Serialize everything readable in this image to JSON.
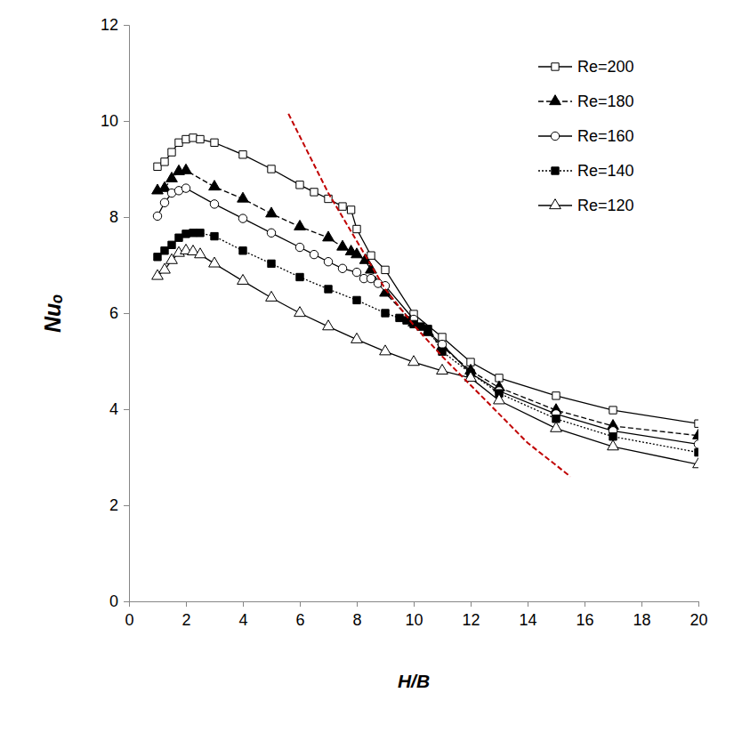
{
  "chart_data": {
    "type": "line",
    "x_label": "H/B",
    "y_label": "Nuₒ",
    "xlim": [
      0,
      20
    ],
    "xticks": [
      0,
      2,
      4,
      6,
      8,
      10,
      12,
      14,
      16,
      18,
      20
    ],
    "ylim": [
      0,
      12
    ],
    "yticks": [
      0,
      2,
      4,
      6,
      8,
      10,
      12
    ],
    "grid": false,
    "legend": "upper right",
    "series": [
      {
        "name": "Re=200",
        "color": "#000000",
        "marker": "square-open",
        "line_style": "solid",
        "x": [
          1,
          1.25,
          1.5,
          1.75,
          2,
          2.25,
          2.5,
          3,
          4,
          5,
          6,
          6.5,
          7,
          7.5,
          7.8,
          8,
          8.5,
          9,
          10,
          11,
          12,
          13,
          15,
          17,
          20
        ],
        "values": [
          9.05,
          9.15,
          9.35,
          9.55,
          9.62,
          9.65,
          9.62,
          9.55,
          9.3,
          9.0,
          8.67,
          8.52,
          8.38,
          8.22,
          8.15,
          7.75,
          7.2,
          6.9,
          5.98,
          5.5,
          4.98,
          4.65,
          4.28,
          3.98,
          3.7
        ]
      },
      {
        "name": "Re=180",
        "color": "#000000",
        "marker": "triangle-filled",
        "line_style": "dashed",
        "x": [
          1,
          1.25,
          1.5,
          1.75,
          2,
          3,
          4,
          5,
          6,
          7,
          7.5,
          7.8,
          8,
          8.3,
          8.5,
          9,
          10,
          10.5,
          11,
          12,
          13,
          15,
          17,
          20
        ],
        "values": [
          8.55,
          8.6,
          8.8,
          8.95,
          8.97,
          8.63,
          8.38,
          8.07,
          7.8,
          7.57,
          7.38,
          7.28,
          7.22,
          7.1,
          6.9,
          6.42,
          5.8,
          5.6,
          5.3,
          4.8,
          4.45,
          3.98,
          3.65,
          3.45
        ]
      },
      {
        "name": "Re=160",
        "color": "#000000",
        "marker": "circle-open",
        "line_style": "solid",
        "x": [
          1,
          1.25,
          1.5,
          1.75,
          2,
          3,
          4,
          5,
          6,
          6.5,
          7,
          7.5,
          8,
          8.25,
          8.5,
          8.75,
          9,
          10,
          11,
          12,
          13,
          15,
          17,
          20
        ],
        "values": [
          8.02,
          8.3,
          8.5,
          8.55,
          8.6,
          8.27,
          7.97,
          7.67,
          7.37,
          7.22,
          7.07,
          6.93,
          6.85,
          6.72,
          6.72,
          6.62,
          6.57,
          5.87,
          5.35,
          4.75,
          4.38,
          3.9,
          3.55,
          3.27
        ]
      },
      {
        "name": "Re=140",
        "color": "#000000",
        "marker": "square-filled",
        "line_style": "dotted",
        "x": [
          1,
          1.25,
          1.5,
          1.75,
          2,
          2.25,
          2.5,
          3,
          4,
          5,
          6,
          7,
          8,
          9,
          9.5,
          9.75,
          10,
          10.25,
          10.5,
          11,
          12,
          13,
          15,
          17,
          20
        ],
        "values": [
          7.17,
          7.3,
          7.42,
          7.57,
          7.65,
          7.67,
          7.67,
          7.6,
          7.3,
          7.03,
          6.75,
          6.5,
          6.27,
          6.0,
          5.9,
          5.85,
          5.77,
          5.72,
          5.67,
          5.2,
          4.75,
          4.33,
          3.8,
          3.43,
          3.1
        ]
      },
      {
        "name": "Re=120",
        "color": "#000000",
        "marker": "triangle-open",
        "line_style": "solid",
        "x": [
          1,
          1.25,
          1.5,
          1.75,
          2,
          2.25,
          2.5,
          3,
          4,
          5,
          6,
          7,
          8,
          9,
          10,
          11,
          12,
          13,
          15,
          17,
          20
        ],
        "values": [
          6.77,
          6.9,
          7.1,
          7.25,
          7.3,
          7.28,
          7.22,
          7.03,
          6.67,
          6.32,
          6.0,
          5.72,
          5.45,
          5.2,
          4.98,
          4.8,
          4.65,
          4.18,
          3.6,
          3.22,
          2.85
        ]
      },
      {
        "color": "#c00000",
        "marker": "none",
        "line_style": "dashed",
        "x": [
          5.6,
          7,
          8,
          9,
          10,
          11,
          12,
          13,
          14,
          15.5
        ],
        "values": [
          10.15,
          8.5,
          7.5,
          6.5,
          5.75,
          5.1,
          4.5,
          3.9,
          3.3,
          2.6
        ]
      }
    ]
  }
}
